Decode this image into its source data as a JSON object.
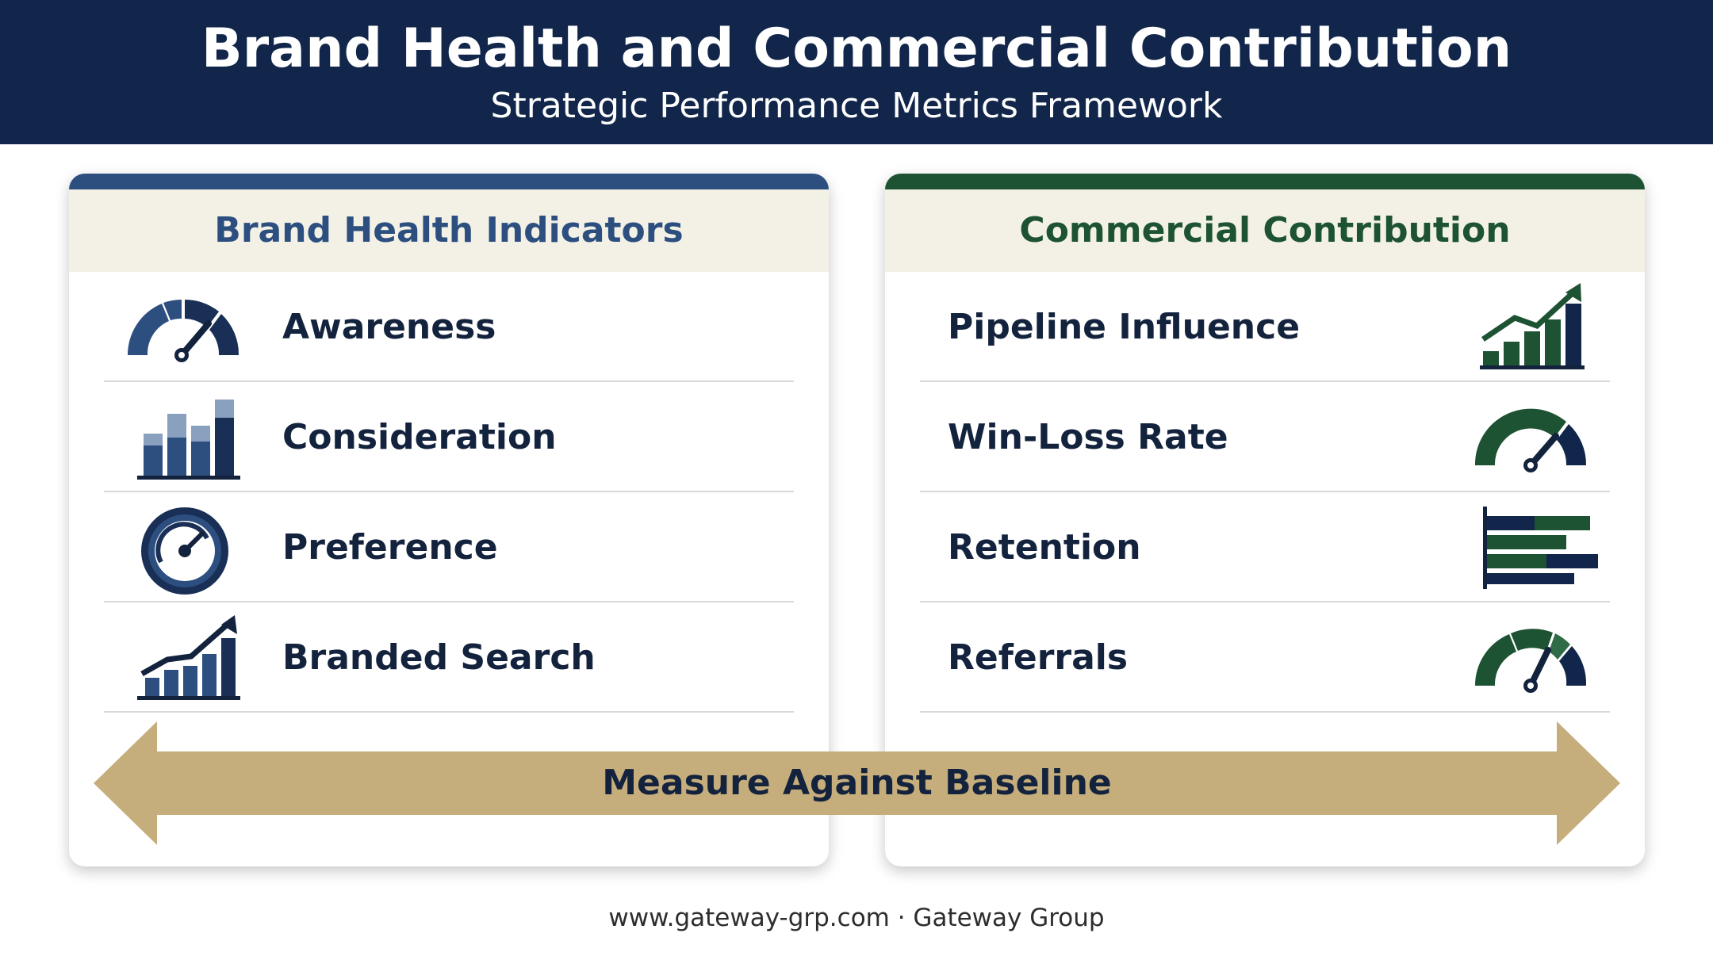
{
  "header": {
    "title": "Brand Health and Commercial Contribution",
    "subtitle": "Strategic Performance Metrics Framework"
  },
  "left_panel": {
    "title": "Brand Health Indicators",
    "accent": "#2c4f80",
    "title_color": "#2c4f80",
    "items": [
      {
        "label": "Awareness",
        "icon": "gauge-icon"
      },
      {
        "label": "Consideration",
        "icon": "bar-chart-icon"
      },
      {
        "label": "Preference",
        "icon": "dial-icon"
      },
      {
        "label": "Branded Search",
        "icon": "growth-chart-icon"
      }
    ]
  },
  "right_panel": {
    "title": "Commercial Contribution",
    "accent": "#1d5232",
    "title_color": "#1d5232",
    "items": [
      {
        "label": "Pipeline Influence",
        "icon": "growth-chart-icon"
      },
      {
        "label": "Win-Loss Rate",
        "icon": "gauge-icon"
      },
      {
        "label": "Retention",
        "icon": "horizontal-bar-chart-icon"
      },
      {
        "label": "Referrals",
        "icon": "gauge-icon"
      }
    ]
  },
  "baseline_arrow": {
    "label": "Measure Against Baseline",
    "color": "#c6ad7c"
  },
  "footer": {
    "text": "www.gateway-grp.com · Gateway Group"
  }
}
